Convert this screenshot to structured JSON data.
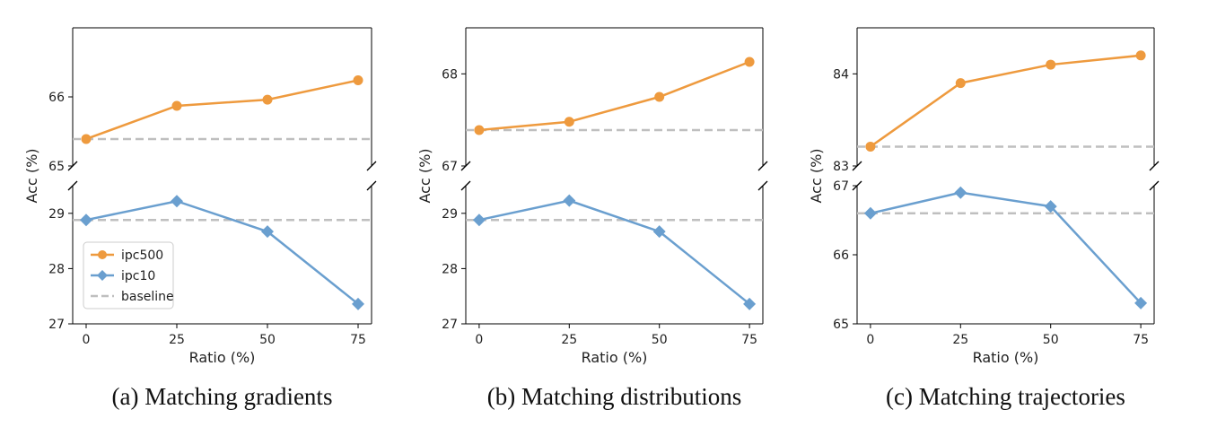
{
  "colors": {
    "ipc500": "#EE9A3E",
    "ipc10": "#6A9FCF",
    "baseline": "#BFBFBF"
  },
  "chart_data": [
    {
      "type": "line",
      "caption": "(a) Matching gradients",
      "xlabel": "Ratio (%)",
      "ylabel": "Acc (%)",
      "x": [
        0,
        25,
        50,
        75
      ],
      "xticks": [
        "0",
        "25",
        "50",
        "75"
      ],
      "broken_y_axis": true,
      "grid": false,
      "legend": {
        "placement": "lower-left",
        "show": true
      },
      "top": {
        "ylim": [
          65.0,
          67.0
        ],
        "yticks": [
          65,
          66
        ],
        "series": [
          {
            "name": "ipc500",
            "marker": "circle",
            "values": [
              65.39,
              65.87,
              65.96,
              66.24
            ]
          }
        ],
        "baseline": 65.39
      },
      "bottom": {
        "ylim": [
          27.0,
          29.5
        ],
        "yticks": [
          27,
          28,
          29
        ],
        "series": [
          {
            "name": "ipc10",
            "marker": "diamond",
            "values": [
              28.88,
              29.22,
              28.67,
              27.36
            ]
          }
        ],
        "baseline": 28.88
      },
      "legend_entries": [
        "ipc500",
        "ipc10",
        "baseline"
      ]
    },
    {
      "type": "line",
      "caption": "(b) Matching distributions",
      "xlabel": "Ratio (%)",
      "ylabel": "Acc (%)",
      "x": [
        0,
        25,
        50,
        75
      ],
      "xticks": [
        "0",
        "25",
        "50",
        "75"
      ],
      "broken_y_axis": true,
      "grid": false,
      "legend": {
        "show": false
      },
      "top": {
        "ylim": [
          67.0,
          68.5
        ],
        "yticks": [
          67,
          68
        ],
        "series": [
          {
            "name": "ipc500",
            "marker": "circle",
            "values": [
              67.39,
              67.48,
              67.75,
              68.13
            ]
          }
        ],
        "baseline": 67.39
      },
      "bottom": {
        "ylim": [
          27.0,
          29.5
        ],
        "yticks": [
          27,
          28,
          29
        ],
        "series": [
          {
            "name": "ipc10",
            "marker": "diamond",
            "values": [
              28.88,
              29.23,
              28.67,
              27.36
            ]
          }
        ],
        "baseline": 28.88
      }
    },
    {
      "type": "line",
      "caption": "(c) Matching trajectories",
      "xlabel": "Ratio (%)",
      "ylabel": "Acc (%)",
      "x": [
        0,
        25,
        50,
        75
      ],
      "xticks": [
        "0",
        "25",
        "50",
        "75"
      ],
      "broken_y_axis": true,
      "grid": false,
      "legend": {
        "show": false
      },
      "top": {
        "ylim": [
          83.0,
          84.5
        ],
        "yticks": [
          83,
          84
        ],
        "series": [
          {
            "name": "ipc500",
            "marker": "circle",
            "values": [
              83.21,
              83.9,
              84.1,
              84.2
            ]
          }
        ],
        "baseline": 83.21
      },
      "bottom": {
        "ylim": [
          65.0,
          67.0
        ],
        "yticks": [
          65,
          66,
          67
        ],
        "series": [
          {
            "name": "ipc10",
            "marker": "diamond",
            "values": [
              66.6,
              66.9,
              66.7,
              65.3
            ]
          }
        ],
        "baseline": 66.6
      }
    }
  ]
}
